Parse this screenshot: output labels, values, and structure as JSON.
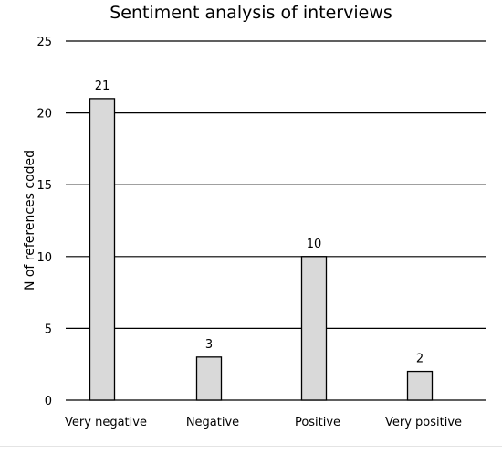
{
  "chart_data": {
    "type": "bar",
    "title": "Sentiment analysis of interviews",
    "xlabel": "",
    "ylabel": "N of references coded",
    "categories": [
      "Very negative",
      "Negative",
      "Positive",
      "Very positive"
    ],
    "values": [
      21,
      3,
      10,
      2
    ],
    "data_labels": [
      "21",
      "3",
      "10",
      "2"
    ],
    "ylim": [
      0,
      25
    ],
    "yticks": [
      0,
      5,
      10,
      15,
      20,
      25
    ],
    "ytick_labels": [
      "0",
      "5",
      "10",
      "15",
      "20",
      "25"
    ],
    "grid": "horizontal",
    "legend": "none",
    "bar_color": "#d9d9d9",
    "bar_edge_color": "#000000",
    "grid_color": "#000000"
  }
}
